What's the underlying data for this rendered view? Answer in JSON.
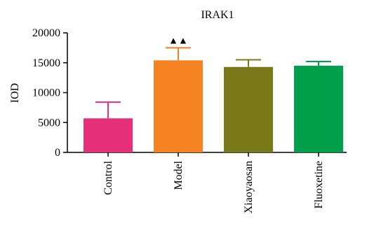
{
  "chart_data": {
    "type": "bar",
    "title": "IRAK1",
    "ylabel": "IOD",
    "xlabel": "",
    "ylim": [
      0,
      20000
    ],
    "yticks": [
      0,
      5000,
      10000,
      15000,
      20000
    ],
    "yticks_labels": [
      "0",
      "5000",
      "10000",
      "15000",
      "20000"
    ],
    "grid": false,
    "legend": "none",
    "categories": [
      "Control",
      "Model",
      "Xiaoyaosan",
      "Fluoxetine"
    ],
    "values": [
      5700,
      15400,
      14300,
      14500
    ],
    "errors": [
      2700,
      2100,
      1200,
      700
    ],
    "colors": [
      "#e8307a",
      "#f58220",
      "#7a7a1a",
      "#00a04a"
    ],
    "annotations": [
      {
        "category": "Model",
        "text": "▲▲"
      }
    ]
  }
}
